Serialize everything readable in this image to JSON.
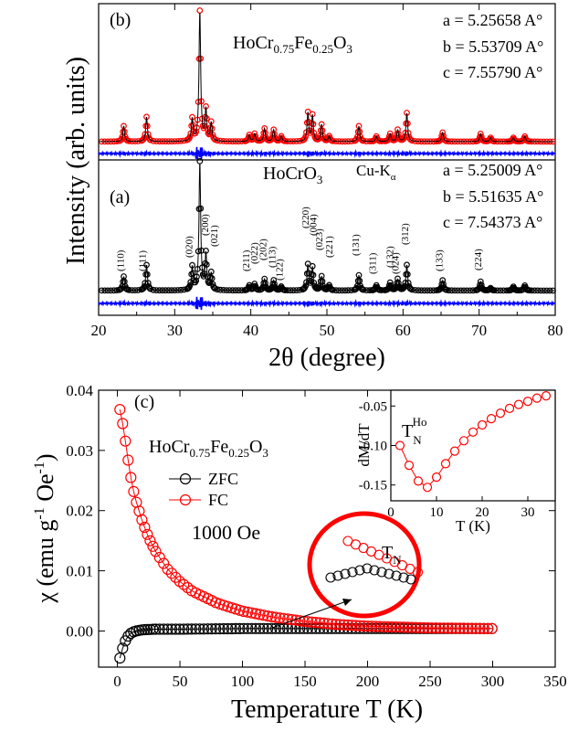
{
  "chart_data": [
    {
      "type": "line",
      "panel": "xrd",
      "xlabel": "2θ (degree)",
      "ylabel": "Intensity (arb. units)",
      "xlim": [
        20,
        80
      ],
      "xticks": [
        20,
        30,
        40,
        50,
        60,
        70,
        80
      ],
      "grid": false,
      "colors": {
        "obs_b": "#ff0000",
        "calc": "#000000",
        "diff": "#0000ff",
        "obs_a": "#000000"
      },
      "peaks_2theta": [
        23.3,
        26.3,
        32.3,
        33.3,
        34.1,
        34.8,
        39.8,
        40.5,
        41.8,
        43.0,
        44.0,
        47.5,
        48.1,
        49.3,
        50.3,
        54.2,
        56.5,
        58.3,
        59.3,
        60.5,
        65.2,
        70.2,
        71.5,
        74.5,
        76.0
      ],
      "panel_b": {
        "label": "(b)",
        "compound": "HoCr0.75Fe0.25O3",
        "lattice": [
          "a = 5.25658 A°",
          "b = 5.53709 A°",
          "c = 7.55790 A°"
        ],
        "relative_intensity": [
          0.12,
          0.19,
          0.17,
          1.0,
          0.24,
          0.14,
          0.05,
          0.06,
          0.1,
          0.09,
          0.04,
          0.22,
          0.2,
          0.13,
          0.04,
          0.12,
          0.04,
          0.06,
          0.09,
          0.22,
          0.07,
          0.06,
          0.03,
          0.03,
          0.04
        ]
      },
      "panel_a": {
        "label": "(a)",
        "compound": "HoCrO3",
        "radiation": "Cu-Kα",
        "lattice": [
          "a = 5.25009 A°",
          "b = 5.51635 A°",
          "c = 7.54373 A°"
        ],
        "relative_intensity": [
          0.11,
          0.2,
          0.18,
          1.0,
          0.28,
          0.13,
          0.04,
          0.05,
          0.09,
          0.08,
          0.03,
          0.2,
          0.18,
          0.11,
          0.04,
          0.12,
          0.04,
          0.06,
          0.09,
          0.2,
          0.08,
          0.07,
          0.02,
          0.03,
          0.04
        ],
        "miller_indices": [
          {
            "hkl": "(110)",
            "x": 23.3
          },
          {
            "hkl": "(111)",
            "x": 26.2
          },
          {
            "hkl": "(020)",
            "x": 32.3
          },
          {
            "hkl": "(021)",
            "x": 35.6
          },
          {
            "hkl": "(200)",
            "x": 34.4
          },
          {
            "hkl": "(211)",
            "x": 39.8
          },
          {
            "hkl": "(022)",
            "x": 40.9
          },
          {
            "hkl": "(202)",
            "x": 42.0
          },
          {
            "hkl": "(113)",
            "x": 43.2
          },
          {
            "hkl": "(122)",
            "x": 44.2
          },
          {
            "hkl": "(220)",
            "x": 47.6
          },
          {
            "hkl": "(004)",
            "x": 48.6
          },
          {
            "hkl": "(023)",
            "x": 49.4
          },
          {
            "hkl": "(221)",
            "x": 50.7
          },
          {
            "hkl": "(131)",
            "x": 54.2
          },
          {
            "hkl": "(311)",
            "x": 56.4
          },
          {
            "hkl": "(132)",
            "x": 58.7
          },
          {
            "hkl": "(024)",
            "x": 59.4
          },
          {
            "hkl": "(312)",
            "x": 60.7
          },
          {
            "hkl": "(133)",
            "x": 65.2
          },
          {
            "hkl": "(224)",
            "x": 70.3
          }
        ]
      }
    },
    {
      "type": "scatter",
      "panel": "(c)",
      "xlabel": "Temperature T (K)",
      "ylabel": "χ (emu g-1 Oe-1)",
      "xlim": [
        -15,
        350
      ],
      "ylim": [
        -0.006,
        0.04
      ],
      "xticks": [
        0,
        50,
        100,
        150,
        200,
        250,
        300,
        350
      ],
      "yticks": [
        0.0,
        0.01,
        0.02,
        0.03,
        0.04
      ],
      "ytick_labels": [
        "0.00",
        "0.01",
        "0.02",
        "0.03",
        "0.04"
      ],
      "annotations": {
        "compound": "HoCr0.75Fe0.25O3",
        "field": "1000 Oe",
        "tn_label": "T",
        "tn_sub": "N"
      },
      "legend_position": "left",
      "series": [
        {
          "name": "ZFC",
          "color": "#000000",
          "x": [
            2,
            4,
            6,
            8,
            10,
            12,
            15,
            20,
            30,
            50,
            100,
            150,
            200,
            250,
            300
          ],
          "y": [
            -0.0045,
            -0.003,
            -0.0018,
            -0.001,
            -0.0005,
            -0.0002,
            0.0,
            0.0002,
            0.0003,
            0.0003,
            0.0004,
            0.0004,
            0.0004,
            0.0004,
            0.0004
          ]
        },
        {
          "name": "FC",
          "color": "#ff0000",
          "x": [
            2,
            5,
            8,
            10,
            12,
            15,
            20,
            25,
            30,
            40,
            50,
            60,
            80,
            100,
            125,
            150,
            175,
            200,
            250,
            300
          ],
          "y": [
            0.0368,
            0.0336,
            0.0292,
            0.0265,
            0.024,
            0.0215,
            0.0182,
            0.0155,
            0.0134,
            0.0103,
            0.0082,
            0.0066,
            0.0046,
            0.0033,
            0.0023,
            0.0016,
            0.0011,
            0.0008,
            0.0005,
            0.0004
          ]
        }
      ]
    },
    {
      "type": "scatter",
      "panel": "inset",
      "xlabel": "T (K)",
      "ylabel": "dM/dT",
      "xlim": [
        0,
        36
      ],
      "ylim": [
        -0.17,
        -0.03
      ],
      "xticks": [
        0,
        10,
        20,
        30
      ],
      "yticks": [
        -0.05,
        -0.1,
        -0.15
      ],
      "ytick_labels": [
        "-0.05",
        "-0.10",
        "-0.15"
      ],
      "annotation": {
        "label": "T",
        "sub": "N",
        "sup": "Ho"
      },
      "series": [
        {
          "name": "",
          "color": "#ff0000",
          "x": [
            2,
            4,
            6,
            8,
            10,
            12,
            14,
            16,
            18,
            20,
            22,
            24,
            26,
            28,
            30,
            32,
            34
          ],
          "y": [
            -0.1,
            -0.125,
            -0.145,
            -0.153,
            -0.14,
            -0.123,
            -0.107,
            -0.094,
            -0.083,
            -0.074,
            -0.066,
            -0.059,
            -0.053,
            -0.048,
            -0.044,
            -0.04,
            -0.037
          ]
        }
      ]
    }
  ]
}
